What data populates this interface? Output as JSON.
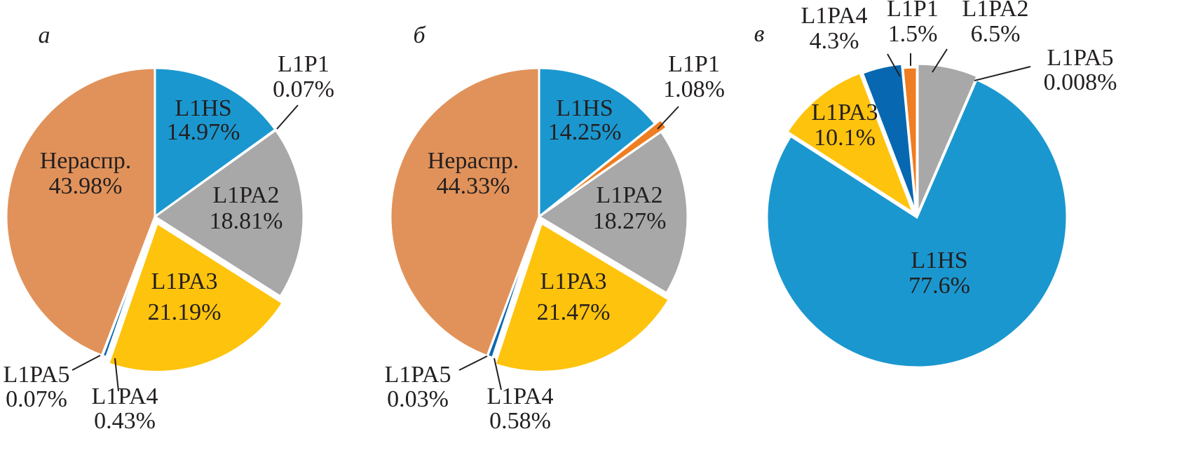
{
  "colors": {
    "L1HS": "#1b97cf",
    "L1P1": "#ef7d22",
    "L1PA2": "#a8a8a8",
    "L1PA3": "#fec30d",
    "L1PA4": "#0768b1",
    "L1PA5": "#7c7c7c",
    "unassigned": "#e1925a"
  },
  "chart_data": [
    {
      "type": "pie",
      "panel_label": "а",
      "slices": [
        {
          "key": "L1HS",
          "label": "L1HS",
          "value": 14.97,
          "display": "14.97%"
        },
        {
          "key": "L1P1",
          "label": "L1P1",
          "value": 0.07,
          "display": "0.07%"
        },
        {
          "key": "L1PA2",
          "label": "L1PA2",
          "value": 18.81,
          "display": "18.81%"
        },
        {
          "key": "L1PA3",
          "label": "L1PA3",
          "value": 21.19,
          "display": "21.19%"
        },
        {
          "key": "L1PA4",
          "label": "L1PA4",
          "value": 0.43,
          "display": "0.43%"
        },
        {
          "key": "L1PA5",
          "label": "L1PA5",
          "value": 0.07,
          "display": "0.07%"
        },
        {
          "key": "unassigned",
          "label": "Нераспр.",
          "value": 43.98,
          "display": "43.98%"
        }
      ]
    },
    {
      "type": "pie",
      "panel_label": "б",
      "slices": [
        {
          "key": "L1HS",
          "label": "L1HS",
          "value": 14.25,
          "display": "14.25%"
        },
        {
          "key": "L1P1",
          "label": "L1P1",
          "value": 1.08,
          "display": "1.08%"
        },
        {
          "key": "L1PA2",
          "label": "L1PA2",
          "value": 18.27,
          "display": "18.27%"
        },
        {
          "key": "L1PA3",
          "label": "L1PA3",
          "value": 21.47,
          "display": "21.47%"
        },
        {
          "key": "L1PA4",
          "label": "L1PA4",
          "value": 0.58,
          "display": "0.58%"
        },
        {
          "key": "L1PA5",
          "label": "L1PA5",
          "value": 0.03,
          "display": "0.03%"
        },
        {
          "key": "unassigned",
          "label": "Нераспр.",
          "value": 44.33,
          "display": "44.33%"
        }
      ]
    },
    {
      "type": "pie",
      "panel_label": "в",
      "slices": [
        {
          "key": "L1PA2",
          "label": "L1PA2",
          "value": 6.5,
          "display": "6.5%"
        },
        {
          "key": "L1PA5",
          "label": "L1PA5",
          "value": 0.008,
          "display": "0.008%"
        },
        {
          "key": "L1HS",
          "label": "L1HS",
          "value": 77.6,
          "display": "77.6%"
        },
        {
          "key": "L1PA3",
          "label": "L1PA3",
          "value": 10.1,
          "display": "10.1%"
        },
        {
          "key": "L1PA4",
          "label": "L1PA4",
          "value": 4.3,
          "display": "4.3%"
        },
        {
          "key": "L1P1",
          "label": "L1P1",
          "value": 1.5,
          "display": "1.5%"
        }
      ]
    }
  ]
}
